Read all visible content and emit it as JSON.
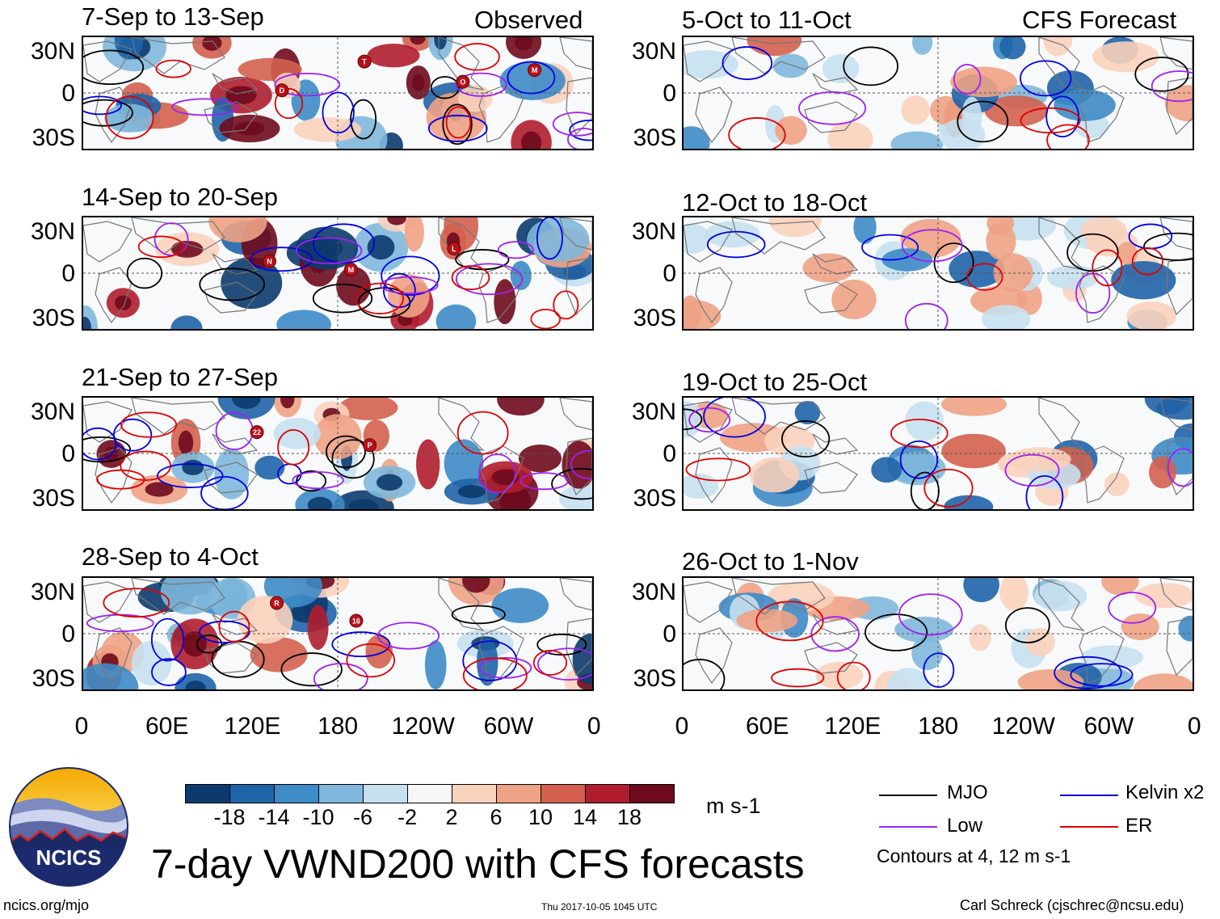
{
  "header": {
    "observed_label": "Observed",
    "forecast_label": "CFS Forecast"
  },
  "observed_panels": [
    {
      "title": "7-Sep to 13-Sep",
      "storms": [
        "D",
        "T",
        "O",
        "M"
      ]
    },
    {
      "title": "14-Sep to 20-Sep",
      "storms": [
        "N",
        "M",
        "L"
      ]
    },
    {
      "title": "21-Sep to 27-Sep",
      "storms": [
        "22",
        "P"
      ]
    },
    {
      "title": "28-Sep to 4-Oct",
      "storms": [
        "R",
        "16"
      ]
    }
  ],
  "forecast_panels": [
    {
      "title": "5-Oct to 11-Oct"
    },
    {
      "title": "12-Oct to 18-Oct"
    },
    {
      "title": "19-Oct to 25-Oct"
    },
    {
      "title": "26-Oct to 1-Nov"
    }
  ],
  "lat_ticks": [
    "30N",
    "0",
    "30S"
  ],
  "lon_ticks": [
    "0",
    "60E",
    "120E",
    "180",
    "120W",
    "60W",
    "0"
  ],
  "colorbar": {
    "ticks": [
      "-18",
      "-14",
      "-10",
      "-6",
      "-2",
      "2",
      "6",
      "10",
      "14",
      "18"
    ],
    "colors": [
      "#0b3b6e",
      "#1f63a8",
      "#3d8bc7",
      "#7fb8dc",
      "#c6e0ef",
      "#f7f7f7",
      "#f9d2bc",
      "#eea285",
      "#d3604e",
      "#b01d2e",
      "#6e0a1d"
    ],
    "unit": "m s-1"
  },
  "legend": {
    "items": [
      {
        "label": "MJO",
        "color": "#000000"
      },
      {
        "label": "Kelvin x2",
        "color": "#0000e0"
      },
      {
        "label": "Low",
        "color": "#a020f0"
      },
      {
        "label": "ER",
        "color": "#e00000"
      }
    ],
    "note": "Contours at 4, 12 m s-1"
  },
  "logo_text": "NCICS",
  "main_title": "7-day VWND200 with CFS forecasts",
  "footer": {
    "url": "ncics.org/mjo",
    "timestamp": "Thu 2017-10-05 1045 UTC",
    "author": "Carl Schreck (cjschrec@ncsu.edu)"
  },
  "chart_data": {
    "type": "heatmap",
    "title": "7-day VWND200 with CFS forecasts",
    "variable": "200 hPa meridional wind anomaly",
    "unit": "m s-1",
    "color_levels": [
      -18,
      -14,
      -10,
      -6,
      -2,
      2,
      6,
      10,
      14,
      18
    ],
    "xlabel": "",
    "ylabel": "",
    "x_ticks": [
      "0",
      "60E",
      "120E",
      "180",
      "120W",
      "60W",
      "0"
    ],
    "y_ticks": [
      "30N",
      "0",
      "30S"
    ],
    "ylim": [
      -40,
      40
    ],
    "observed_periods": [
      "7-Sep to 13-Sep",
      "14-Sep to 20-Sep",
      "21-Sep to 27-Sep",
      "28-Sep to 4-Oct"
    ],
    "forecast_periods": [
      "5-Oct to 11-Oct",
      "12-Oct to 18-Oct",
      "19-Oct to 25-Oct",
      "26-Oct to 1-Nov"
    ],
    "contour_series": [
      "MJO",
      "Kelvin x2",
      "Low",
      "ER"
    ],
    "contour_levels": [
      4,
      12
    ]
  }
}
